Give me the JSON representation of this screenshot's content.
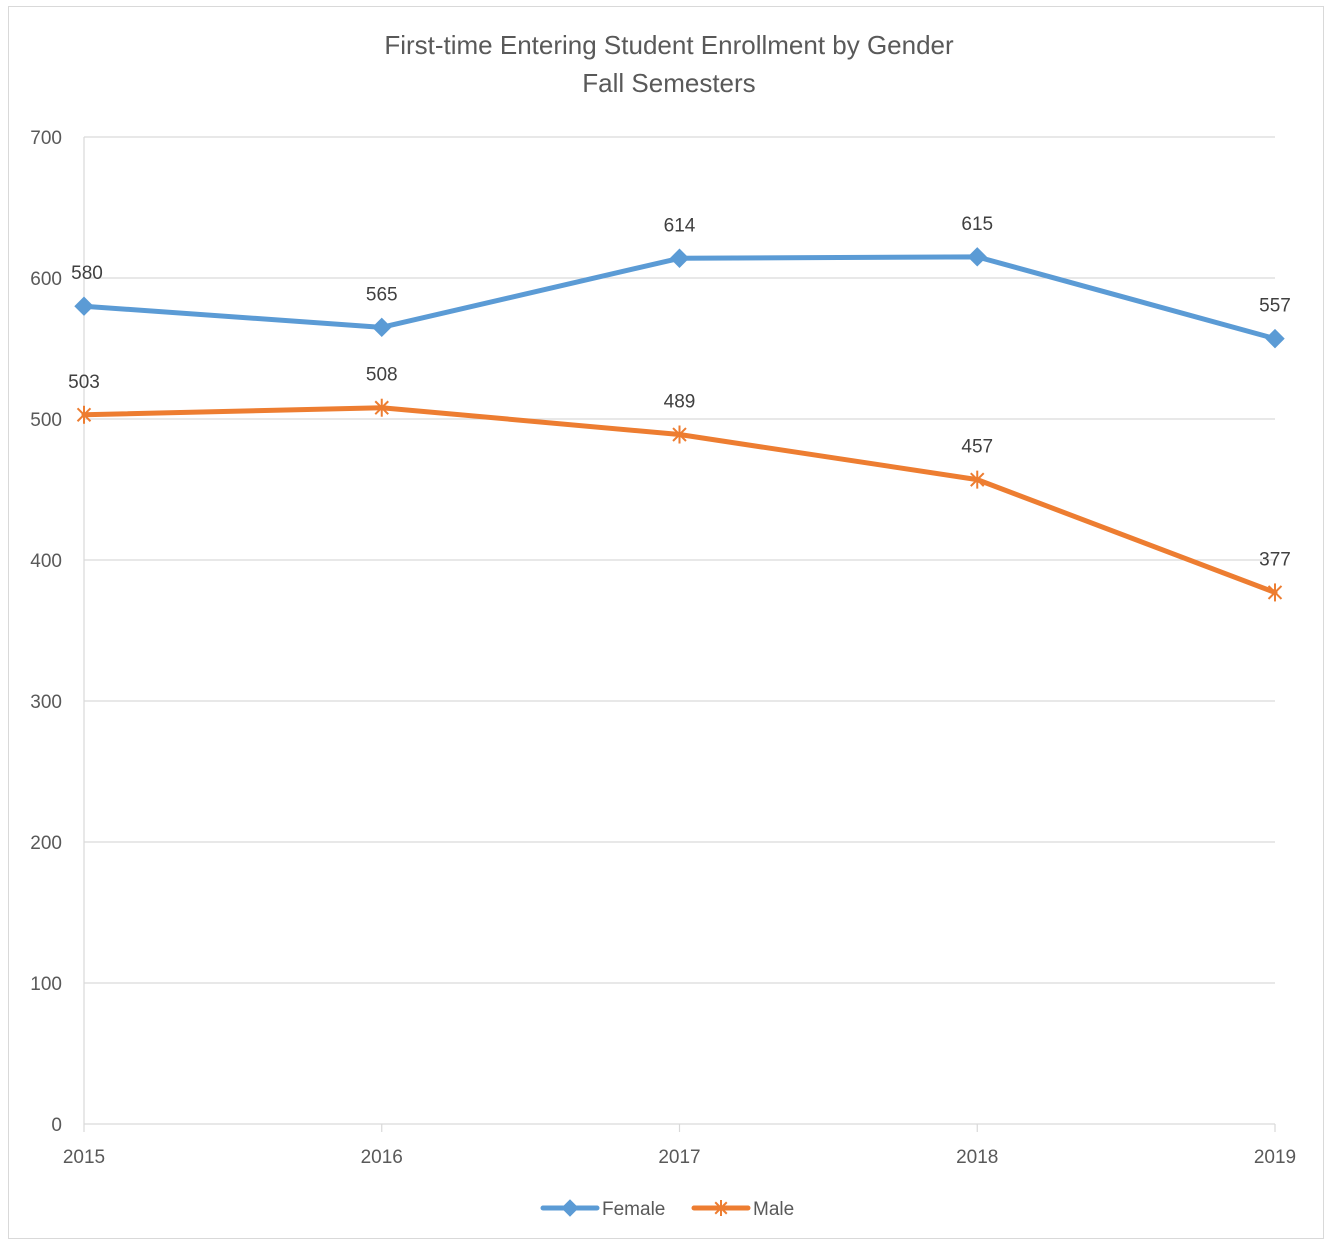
{
  "chart_data": {
    "type": "line",
    "title": "First-time Entering Student Enrollment by Gender",
    "subtitle": "Fall Semesters",
    "xlabel": "",
    "ylabel": "",
    "categories": [
      "2015",
      "2016",
      "2017",
      "2018",
      "2019"
    ],
    "ylim": [
      0,
      700
    ],
    "yticks": [
      0,
      100,
      200,
      300,
      400,
      500,
      600,
      700
    ],
    "grid": true,
    "legend": "bottom",
    "series": [
      {
        "name": "Female",
        "values": [
          580,
          565,
          614,
          615,
          557
        ],
        "color": "#5b9bd5",
        "marker": "diamond-icon"
      },
      {
        "name": "Male",
        "values": [
          503,
          508,
          489,
          457,
          377
        ],
        "color": "#ed7d31",
        "marker": "asterisk-icon"
      }
    ]
  }
}
